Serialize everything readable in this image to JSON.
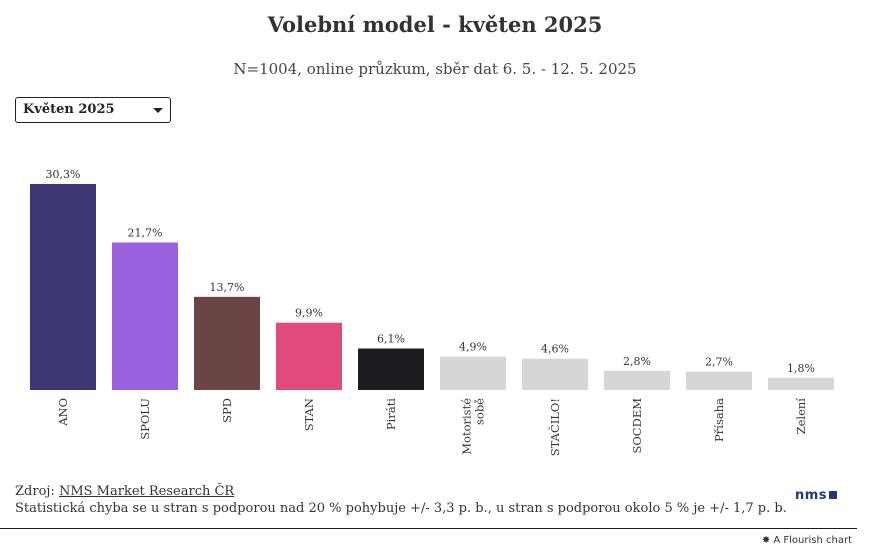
{
  "title": "Volební model - květen 2025",
  "subtitle": "N=1004, online průzkum, sběr dat 6. 5. - 12. 5. 2025",
  "selector": {
    "value": "Květen 2025"
  },
  "chart_data": {
    "type": "bar",
    "categories": [
      "ANO",
      "SPOLU",
      "SPD",
      "STAN",
      "Piráti",
      "Motoristé sobě",
      "STAČILO!",
      "SOCDEM",
      "Přísaha",
      "Zelení"
    ],
    "category_lines": [
      [
        "ANO"
      ],
      [
        "SPOLU"
      ],
      [
        "SPD"
      ],
      [
        "STAN"
      ],
      [
        "Piráti"
      ],
      [
        "Motoristé",
        "sobě"
      ],
      [
        "STAČILO!"
      ],
      [
        "SOCDEM"
      ],
      [
        "Přísaha"
      ],
      [
        "Zelení"
      ]
    ],
    "values": [
      30.3,
      21.7,
      13.7,
      9.9,
      6.1,
      4.9,
      4.6,
      2.8,
      2.7,
      1.8
    ],
    "value_labels": [
      "30,3%",
      "21,7%",
      "13,7%",
      "9,9%",
      "6,1%",
      "4,9%",
      "4,6%",
      "2,8%",
      "2,7%",
      "1,8%"
    ],
    "colors": [
      "#3d3775",
      "#9b62e0",
      "#6b4445",
      "#e04a7c",
      "#1c1b1f",
      "#d6d6d6",
      "#d6d6d6",
      "#d6d6d6",
      "#d6d6d6",
      "#d6d6d6"
    ],
    "ylim": [
      0,
      30.3
    ],
    "grid": false,
    "legend": "none"
  },
  "footer": {
    "source_prefix": "Zdroj: ",
    "source_link": "NMS Market Research ČR",
    "note": "Statistická chyba se u stran s podporou nad 20 % pohybuje +/- 3,3 p. b., u stran s podporou okolo 5 % je +/- 1,7 p. b."
  },
  "brand": "nms",
  "credit": "A Flourish chart"
}
